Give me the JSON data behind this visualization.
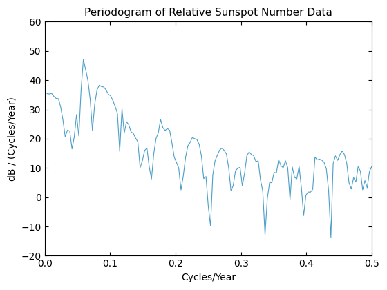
{
  "title": "Periodogram of Relative Sunspot Number Data",
  "xlabel": "Cycles/Year",
  "ylabel": "dB / (Cycles/Year)",
  "xlim": [
    0,
    0.5
  ],
  "ylim": [
    -20,
    60
  ],
  "line_color": "#4c9fc8",
  "line_width": 0.8,
  "xticks": [
    0,
    0.1,
    0.2,
    0.3,
    0.4,
    0.5
  ],
  "yticks": [
    -20,
    -10,
    0,
    10,
    20,
    30,
    40,
    50,
    60
  ],
  "figsize": [
    5.6,
    4.2
  ],
  "dpi": 100
}
